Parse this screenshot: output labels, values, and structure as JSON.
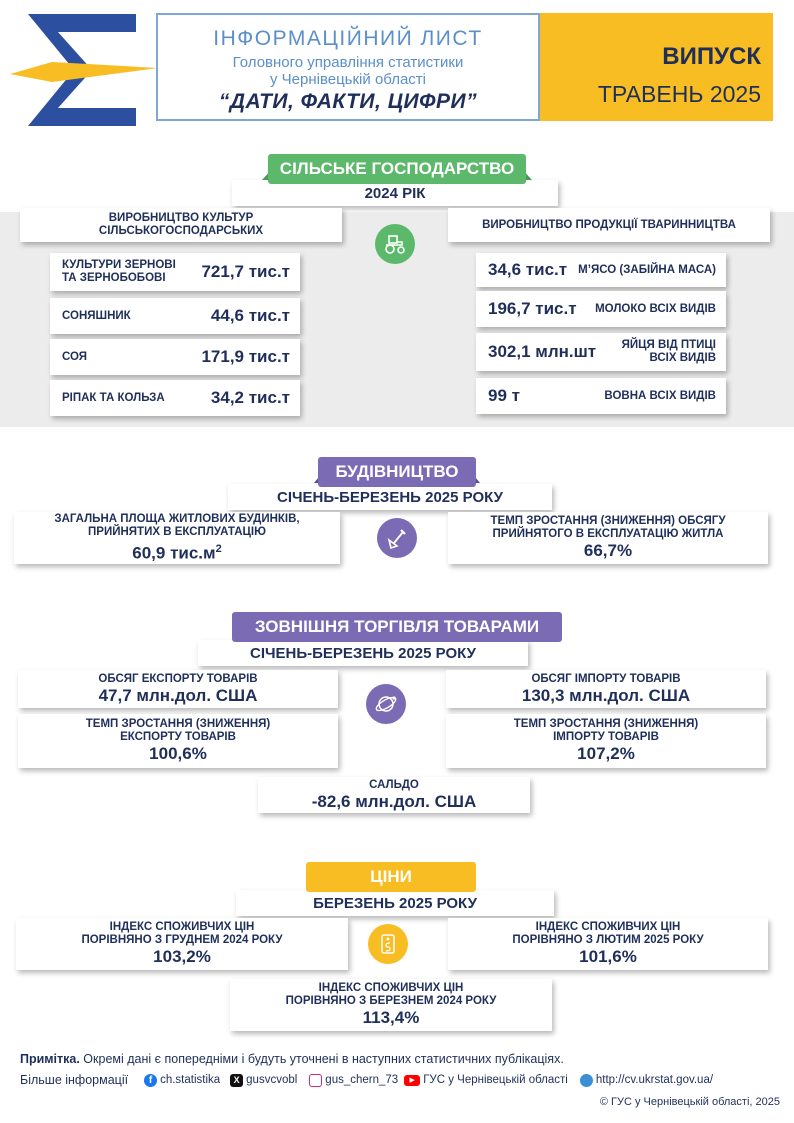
{
  "header": {
    "title": "ІНФОРМАЦІЙНИЙ ЛИСТ",
    "subtitle_line1": "Головного управління статистики",
    "subtitle_line2": "у Чернівецькій області",
    "slogan": "“ДАТИ, ФАКТИ, ЦИФРИ”",
    "issue_label": "ВИПУСК",
    "issue_date": "ТРАВЕНЬ 2025"
  },
  "agriculture": {
    "title": "СІЛЬСЬКЕ ГОСПОДАРСТВО",
    "period": "2024 РІК",
    "crops_title": "ВИРОБНИЦТВО КУЛЬТУР СІЛЬСЬКОГОСПОДАРСЬКИХ",
    "crops": [
      {
        "name": "КУЛЬТУРИ ЗЕРНОВІ ТА ЗЕРНОБОБОВІ",
        "value": "721,7 тис.т"
      },
      {
        "name": "СОНЯШНИК",
        "value": "44,6 тис.т"
      },
      {
        "name": "СОЯ",
        "value": "171,9 тис.т"
      },
      {
        "name": "РІПАК ТА КОЛЬЗА",
        "value": "34,2 тис.т"
      }
    ],
    "livestock_title": "ВИРОБНИЦТВО ПРОДУКЦІЇ ТВАРИННИЦТВА",
    "livestock": [
      {
        "name": "М’ЯСО (ЗАБІЙНА МАСА)",
        "value": "34,6 тис.т"
      },
      {
        "name": "МОЛОКО ВСІХ ВИДІВ",
        "value": "196,7 тис.т"
      },
      {
        "name": "ЯЙЦЯ ВІД ПТИЦІ ВСІХ ВИДІВ",
        "value": "302,1 млн.шт"
      },
      {
        "name": "ВОВНА ВСІХ ВИДІВ",
        "value": "99 т"
      }
    ]
  },
  "construction": {
    "title": "БУДІВНИЦТВО",
    "period": "СІЧЕНЬ-БЕРЕЗЕНЬ 2025 РОКУ",
    "left_caption": "ЗАГАЛЬНА ПЛОЩА ЖИТЛОВИХ БУДИНКІВ, ПРИЙНЯТИХ В ЕКСПЛУАТАЦІЮ",
    "left_value": "60,9 тис.м",
    "left_unit_sup": "2",
    "right_caption": "ТЕМП ЗРОСТАННЯ (ЗНИЖЕННЯ) ОБСЯГУ ПРИЙНЯТОГО В ЕКСПЛУАТАЦІЮ ЖИТЛА",
    "right_value": "66,7%"
  },
  "trade": {
    "title": "ЗОВНІШНЯ ТОРГІВЛЯ ТОВАРАМИ",
    "period": "СІЧЕНЬ-БЕРЕЗЕНЬ 2025 РОКУ",
    "export_caption": "ОБСЯГ ЕКСПОРТУ ТОВАРІВ",
    "export_value": "47,7 млн.дол. США",
    "import_caption": "ОБСЯГ ІМПОРТУ ТОВАРІВ",
    "import_value": "130,3 млн.дол. США",
    "export_rate_caption": "ТЕМП ЗРОСТАННЯ (ЗНИЖЕННЯ) ЕКСПОРТУ ТОВАРІВ",
    "export_rate_value": "100,6%",
    "import_rate_caption": "ТЕМП ЗРОСТАННЯ (ЗНИЖЕННЯ) ІМПОРТУ ТОВАРІВ",
    "import_rate_value": "107,2%",
    "balance_caption": "САЛЬДО",
    "balance_value": "-82,6 млн.дол. США"
  },
  "prices": {
    "title": "ЦІНИ",
    "period": "БЕРЕЗЕНЬ 2025 РОКУ",
    "cpi_dec_caption1": "ІНДЕКС СПОЖИВЧИХ ЦІН",
    "cpi_dec_caption2": "ПОРІВНЯНО З ГРУДНЕМ 2024 РОКУ",
    "cpi_dec_value": "103,2%",
    "cpi_feb_caption1": "ІНДЕКС СПОЖИВЧИХ ЦІН",
    "cpi_feb_caption2": "ПОРІВНЯНО З ЛЮТИМ 2025 РОКУ",
    "cpi_feb_value": "101,6%",
    "cpi_mar_caption1": "ІНДЕКС СПОЖИВЧИХ ЦІН",
    "cpi_mar_caption2": "ПОРІВНЯНО З БЕРЕЗНЕМ 2024 РОКУ",
    "cpi_mar_value": "113,4%"
  },
  "footer": {
    "note_label": "Примітка.",
    "note_text": " Окремі дані є попередніми і будуть уточнені в наступних статистичних публікаціях.",
    "more_info": "Більше інформації",
    "facebook": "ch.statistika",
    "x": "gusvcvobl",
    "instagram": "gus_chern_73",
    "youtube": "ГУС у Чернівецькій області",
    "website": "http://cv.ukrstat.gov.ua/",
    "copyright": "© ГУС у Чернівецькій області, 2025"
  },
  "colors": {
    "navy": "#1f2f5a",
    "green": "#5cb86a",
    "purple": "#7b6bb5",
    "yellow": "#f7bd22",
    "title_blue": "#5b8fc9"
  }
}
